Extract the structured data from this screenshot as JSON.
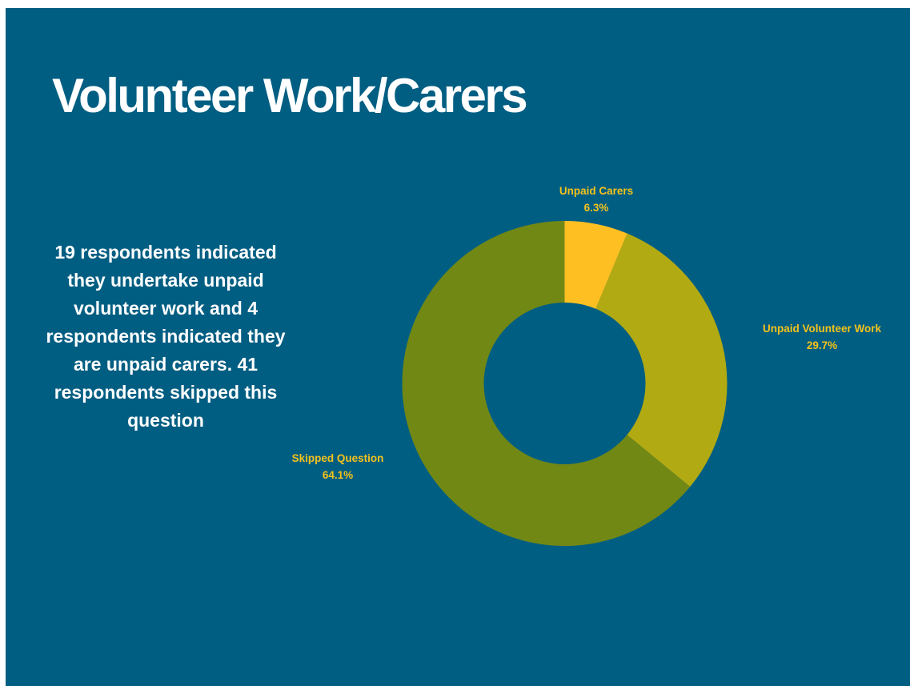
{
  "title": "Volunteer Work/Carers",
  "summary": "19 respondents indicated they undertake unpaid volunteer work and 4 respondents indicated they are unpaid carers.  41 respondents skipped this question",
  "colors": {
    "background": "#005e82",
    "label_text": "#f5c21b",
    "title_text": "#ffffff"
  },
  "chart_data": {
    "type": "pie",
    "subtype": "donut",
    "title": "",
    "legend": "none",
    "slices": [
      {
        "name": "Unpaid Carers",
        "value": 6.3,
        "label": "6.3%",
        "color": "#fdbf22"
      },
      {
        "name": "Unpaid Volunteer Work",
        "value": 29.7,
        "label": "29.7%",
        "color": "#b2aa12"
      },
      {
        "name": "Skipped Question",
        "value": 64.1,
        "label": "64.1%",
        "color": "#728815"
      }
    ]
  }
}
